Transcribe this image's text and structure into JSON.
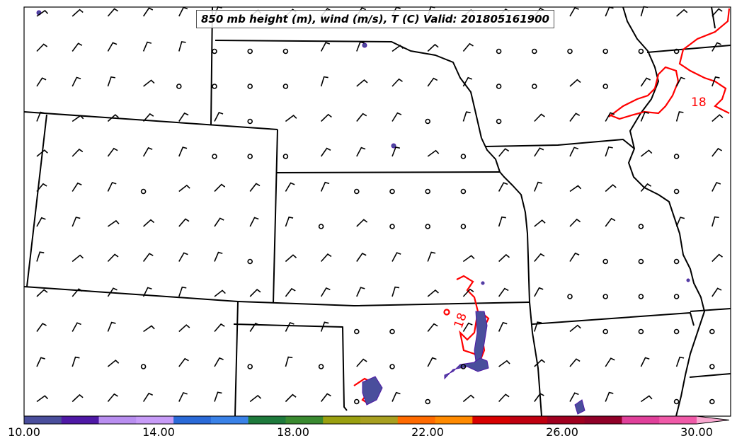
{
  "title": "850 mb height (m), wind (m/s), T (C) Valid: 201805161900",
  "contour_labels": [
    {
      "text": "18",
      "color": "#ff0000"
    },
    {
      "text": "18",
      "color": "#ff0000"
    }
  ],
  "colorbar": {
    "ticks": [
      "10.00",
      "14.00",
      "18.00",
      "22.00",
      "26.00",
      "30.00"
    ],
    "colors": [
      "#4a4e9c",
      "#4f19a6",
      "#b98ef0",
      "#c89cf8",
      "#2a6ad8",
      "#3a82e8",
      "#1e7a3c",
      "#3a8a30",
      "#9aa010",
      "#a8a020",
      "#ff6a00",
      "#ff8a00",
      "#d80000",
      "#c00010",
      "#a00020",
      "#900028",
      "#e0409a",
      "#f05aa8",
      "#f8a8d0"
    ]
  },
  "colors": {
    "boundary": "#000000",
    "temperature_contour": "#ff0000",
    "precip_low": "#4a4e9c"
  },
  "wind_glyph": "barb",
  "calm_glyph": "circle"
}
